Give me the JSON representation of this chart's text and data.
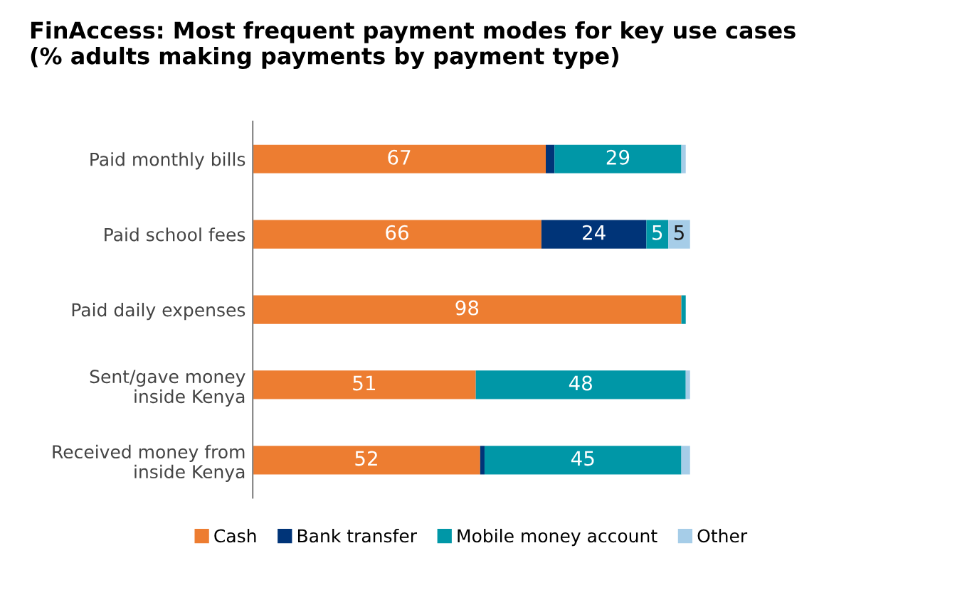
{
  "chart_data": {
    "type": "bar",
    "orientation": "horizontal",
    "stacked": true,
    "title": "FinAccess: Most frequent payment modes for key use cases\n(% adults making payments by payment type)",
    "categories": [
      "Paid monthly bills",
      "Paid school fees",
      "Paid daily expenses",
      "Sent/gave money\ninside Kenya",
      "Received money from\ninside Kenya"
    ],
    "series": [
      {
        "name": "Cash",
        "color": "#ed7d31",
        "values": [
          67,
          66,
          98,
          51,
          52
        ],
        "value_labels": [
          "67",
          "66",
          "98",
          "51",
          "52"
        ]
      },
      {
        "name": "Bank transfer",
        "color": "#003478",
        "values": [
          2,
          24,
          0,
          0,
          1
        ],
        "value_labels": [
          null,
          "24",
          null,
          null,
          null
        ]
      },
      {
        "name": "Mobile money account",
        "color": "#0097a7",
        "values": [
          29,
          5,
          1,
          48,
          45
        ],
        "value_labels": [
          "29",
          "5",
          null,
          "48",
          "45"
        ]
      },
      {
        "name": "Other",
        "color": "#a6cde8",
        "values": [
          1,
          5,
          0,
          1,
          2
        ],
        "value_labels": [
          null,
          "5",
          null,
          null,
          null
        ]
      }
    ],
    "xlim": [
      0,
      100
    ],
    "tick_labels": "y",
    "grid": false,
    "legend": "bottom"
  }
}
